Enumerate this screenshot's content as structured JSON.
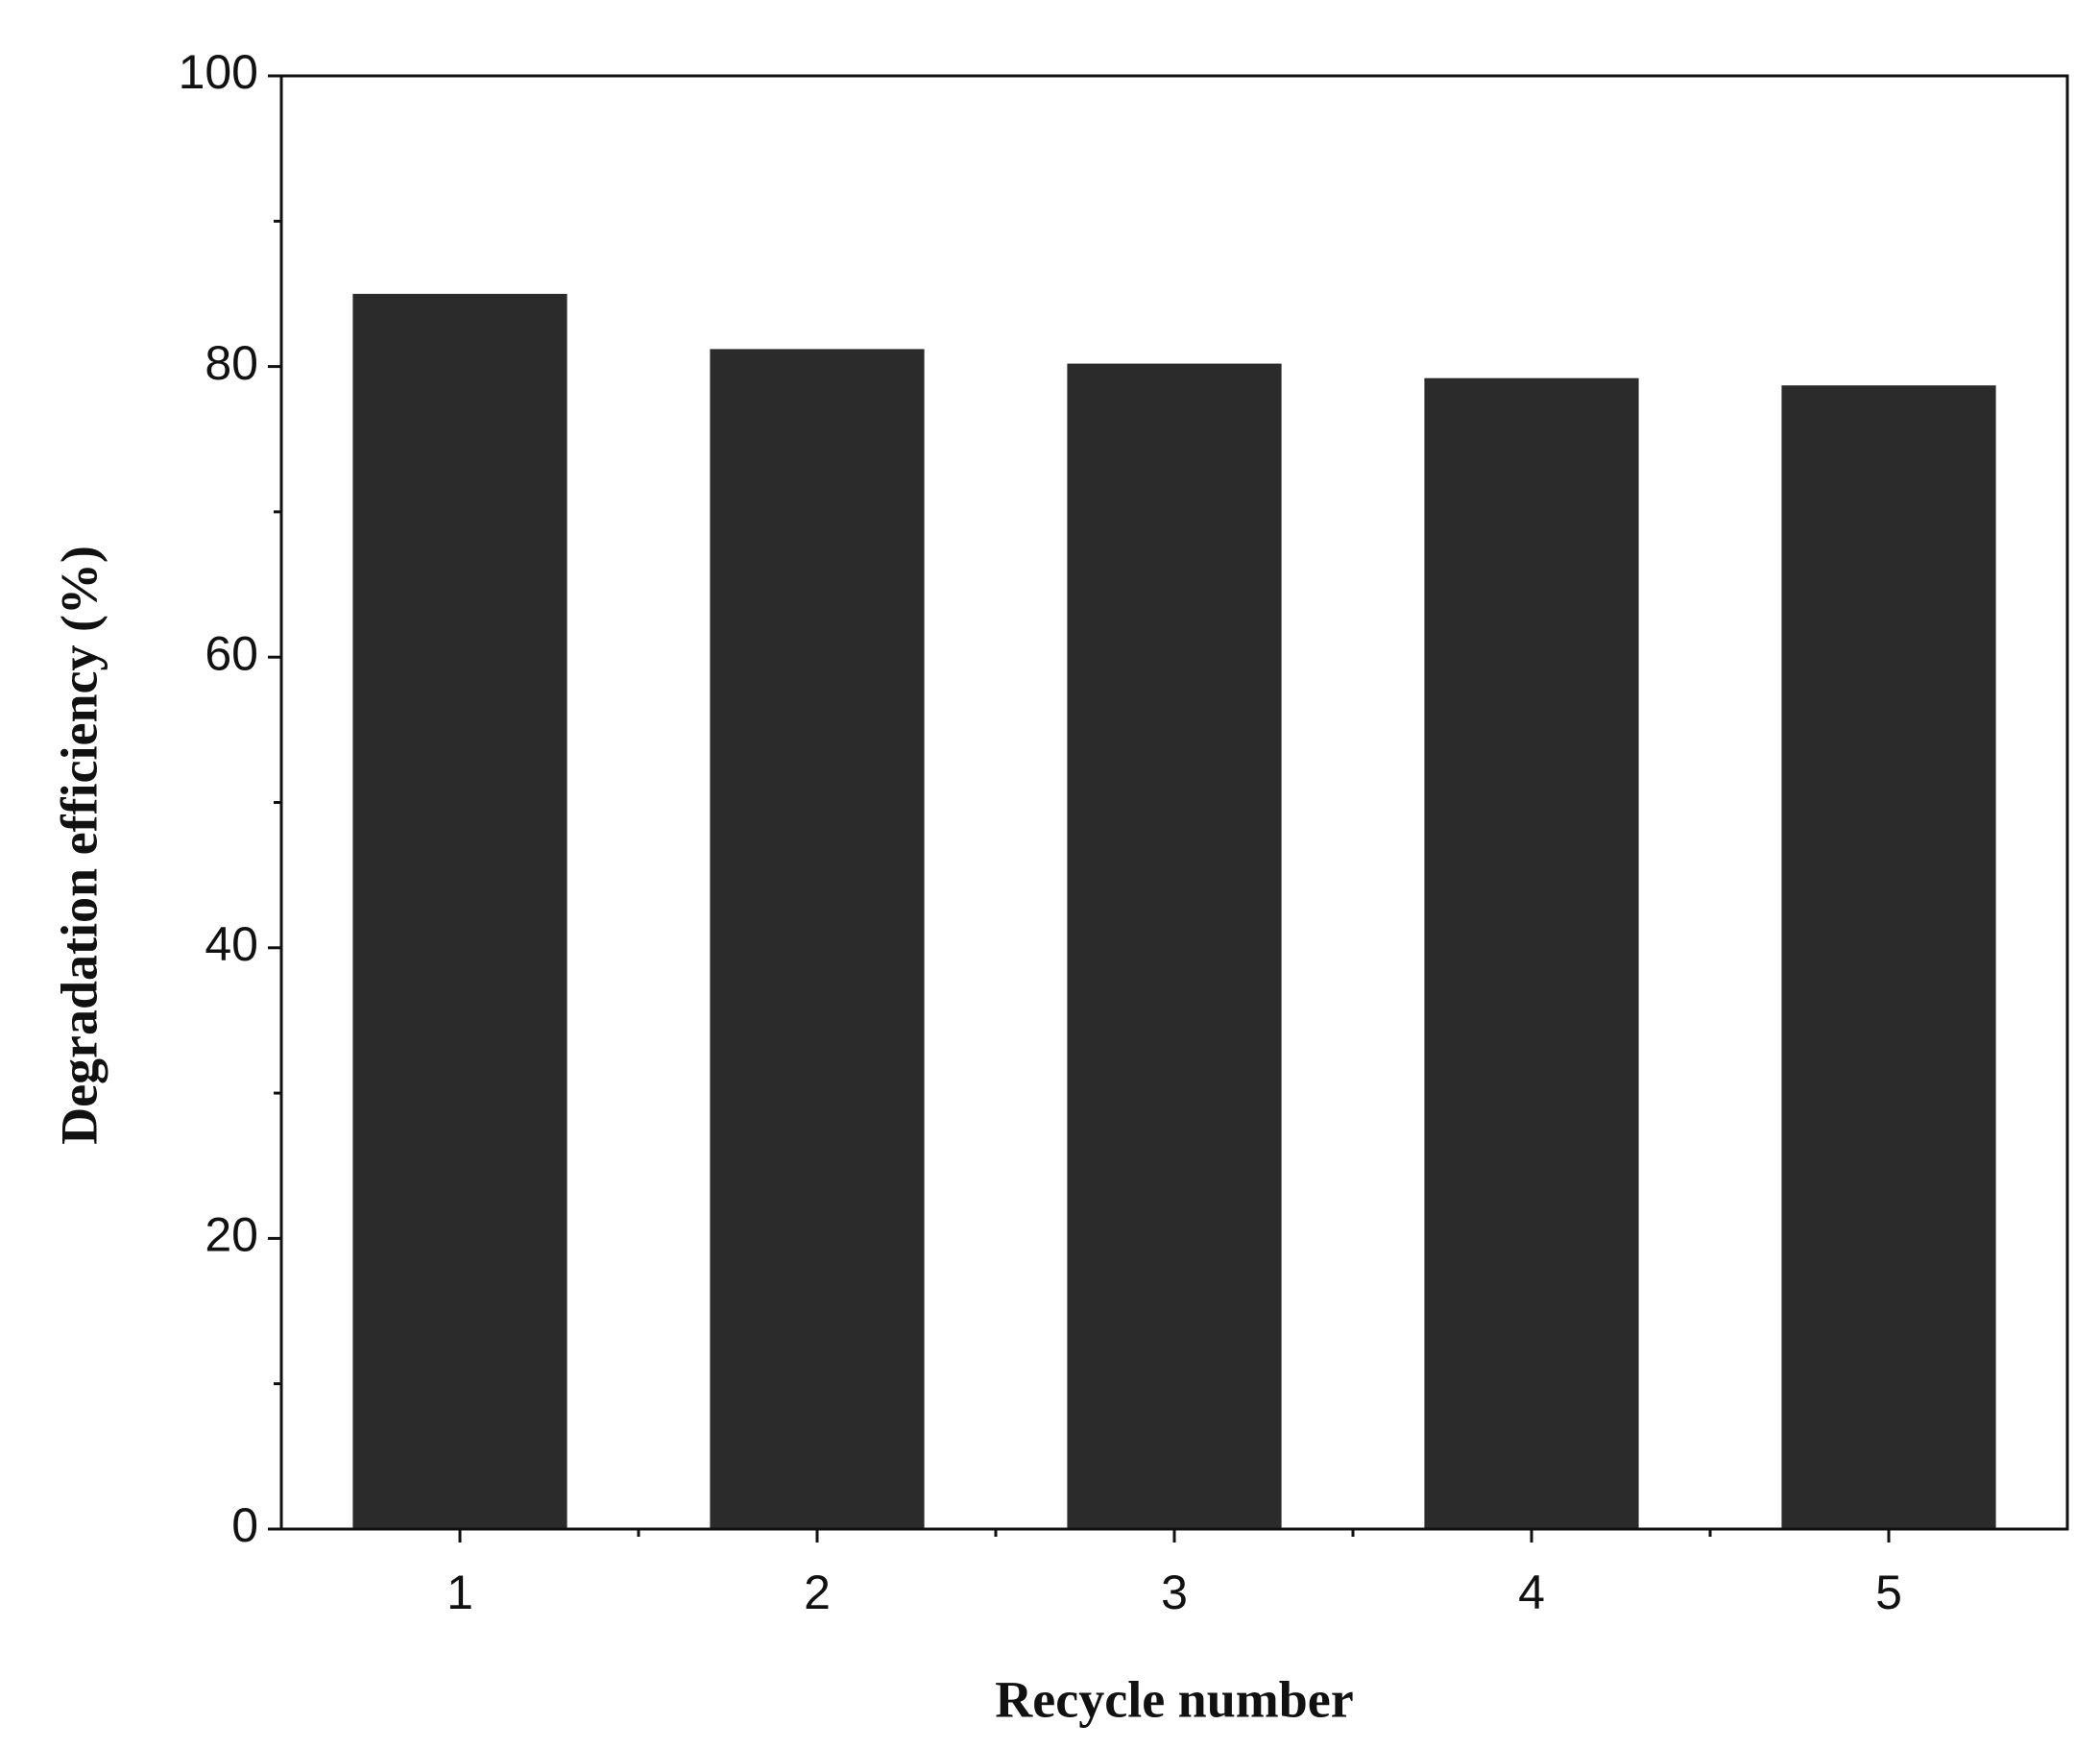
{
  "chart_data": {
    "type": "bar",
    "x_label": "Recycle number",
    "y_label": "Degradation efficiency (%)",
    "x": [
      1,
      2,
      3,
      4,
      5
    ],
    "values": [
      85,
      81.2,
      80.2,
      79.2,
      78.7
    ],
    "color": "#2b2b2b",
    "xlim": [
      0.5,
      5.5
    ],
    "xticks": [
      1,
      2,
      3,
      4,
      5
    ],
    "xminorticks": [
      1.5,
      2.5,
      3.5,
      4.5
    ],
    "ylim": [
      0,
      100
    ],
    "yticks": [
      0,
      20,
      40,
      60,
      80,
      100
    ],
    "yminorticks": [
      10,
      30,
      50,
      70,
      90
    ],
    "grid": false
  }
}
